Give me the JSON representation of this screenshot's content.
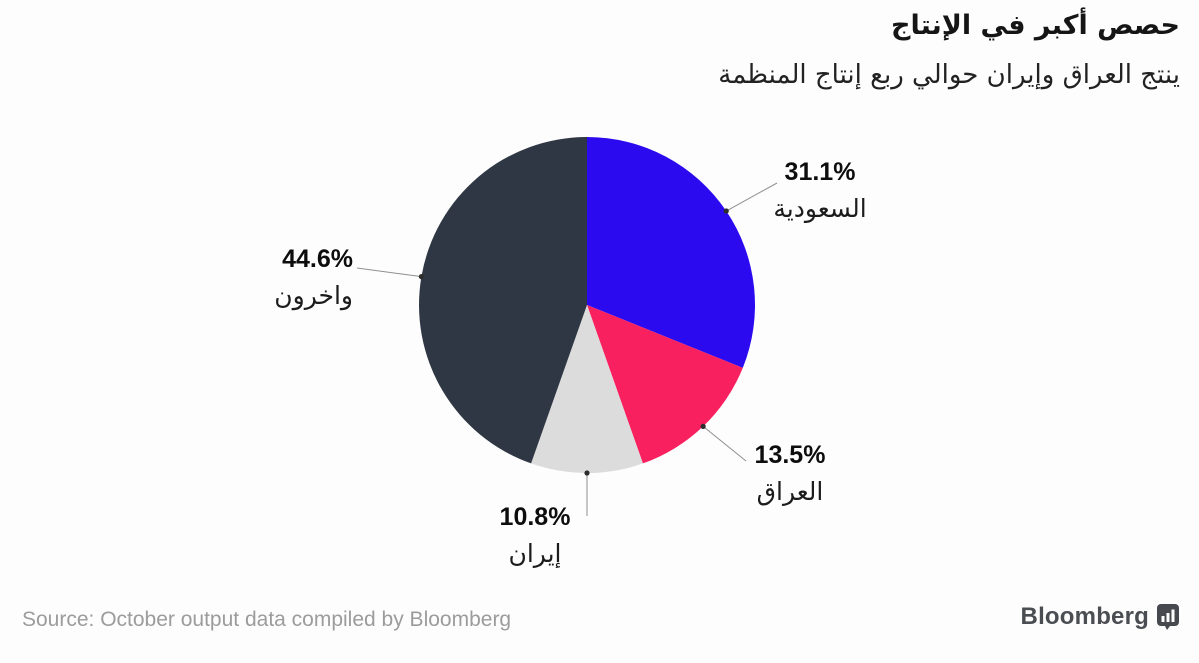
{
  "header": {
    "title": "حصص أكبر في الإنتاج",
    "subtitle": "ينتج العراق وإيران حوالي ربع إنتاج المنظمة"
  },
  "chart_data": {
    "type": "pie",
    "title": "حصص أكبر في الإنتاج",
    "subtitle": "ينتج العراق وإيران حوالي ربع إنتاج المنظمة",
    "start_angle_deg": 0,
    "direction": "clockwise",
    "legend_position": "none",
    "labels": "external-callouts-with-leader-lines",
    "slices": [
      {
        "key": "saudi",
        "label": "السعودية",
        "pct_label": "31.1%",
        "value": 31.1,
        "color": "#2b0aef"
      },
      {
        "key": "iraq",
        "label": "العراق",
        "pct_label": "13.5%",
        "value": 13.5,
        "color": "#f9205f"
      },
      {
        "key": "iran",
        "label": "إيران",
        "pct_label": "10.8%",
        "value": 10.8,
        "color": "#dcdcdc"
      },
      {
        "key": "others",
        "label": "واخرون",
        "pct_label": "44.6%",
        "value": 44.6,
        "color": "#2f3744"
      }
    ],
    "leader_line_color": "#8f8f8f",
    "leader_dot_color": "#2e2e2e"
  },
  "footer": {
    "source": "Source: October output data compiled by Bloomberg",
    "brand": "Bloomberg"
  }
}
